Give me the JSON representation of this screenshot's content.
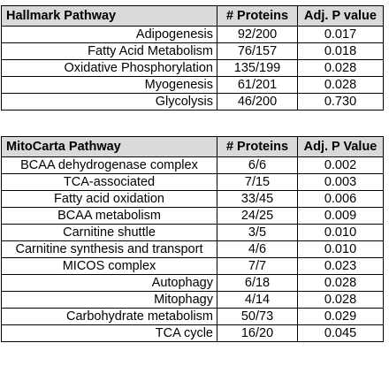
{
  "hallmark": {
    "headers": {
      "pathway": "Hallmark Pathway",
      "proteins": "# Proteins",
      "pvalue": "Adj. P value"
    },
    "rows": [
      {
        "pathway": "Adipogenesis",
        "proteins": "92/200",
        "pvalue": "0.017"
      },
      {
        "pathway": "Fatty Acid Metabolism",
        "proteins": "76/157",
        "pvalue": "0.018"
      },
      {
        "pathway": "Oxidative Phosphorylation",
        "proteins": "135/199",
        "pvalue": "0.028"
      },
      {
        "pathway": "Myogenesis",
        "proteins": "61/201",
        "pvalue": "0.028"
      },
      {
        "pathway": "Glycolysis",
        "proteins": "46/200",
        "pvalue": "0.730"
      }
    ]
  },
  "mitocarta": {
    "headers": {
      "pathway": "MitoCarta Pathway",
      "proteins": "# Proteins",
      "pvalue": "Adj. P Value"
    },
    "rows": [
      {
        "pathway": "BCAA dehydrogenase complex",
        "proteins": "6/6",
        "pvalue": "0.002"
      },
      {
        "pathway": "TCA-associated",
        "proteins": "7/15",
        "pvalue": "0.003"
      },
      {
        "pathway": "Fatty acid oxidation",
        "proteins": "33/45",
        "pvalue": "0.006"
      },
      {
        "pathway": "BCAA metabolism",
        "proteins": "24/25",
        "pvalue": "0.009"
      },
      {
        "pathway": "Carnitine shuttle",
        "proteins": "3/5",
        "pvalue": "0.010"
      },
      {
        "pathway": "Carnitine synthesis and transport",
        "proteins": "4/6",
        "pvalue": "0.010"
      },
      {
        "pathway": "MICOS complex",
        "proteins": "7/7",
        "pvalue": "0.023"
      },
      {
        "pathway": "Autophagy",
        "proteins": "6/18",
        "pvalue": "0.028"
      },
      {
        "pathway": "Mitophagy",
        "proteins": "4/14",
        "pvalue": "0.028"
      },
      {
        "pathway": "Carbohydrate metabolism",
        "proteins": "50/73",
        "pvalue": "0.029"
      },
      {
        "pathway": "TCA cycle",
        "proteins": "16/20",
        "pvalue": "0.045"
      }
    ]
  }
}
